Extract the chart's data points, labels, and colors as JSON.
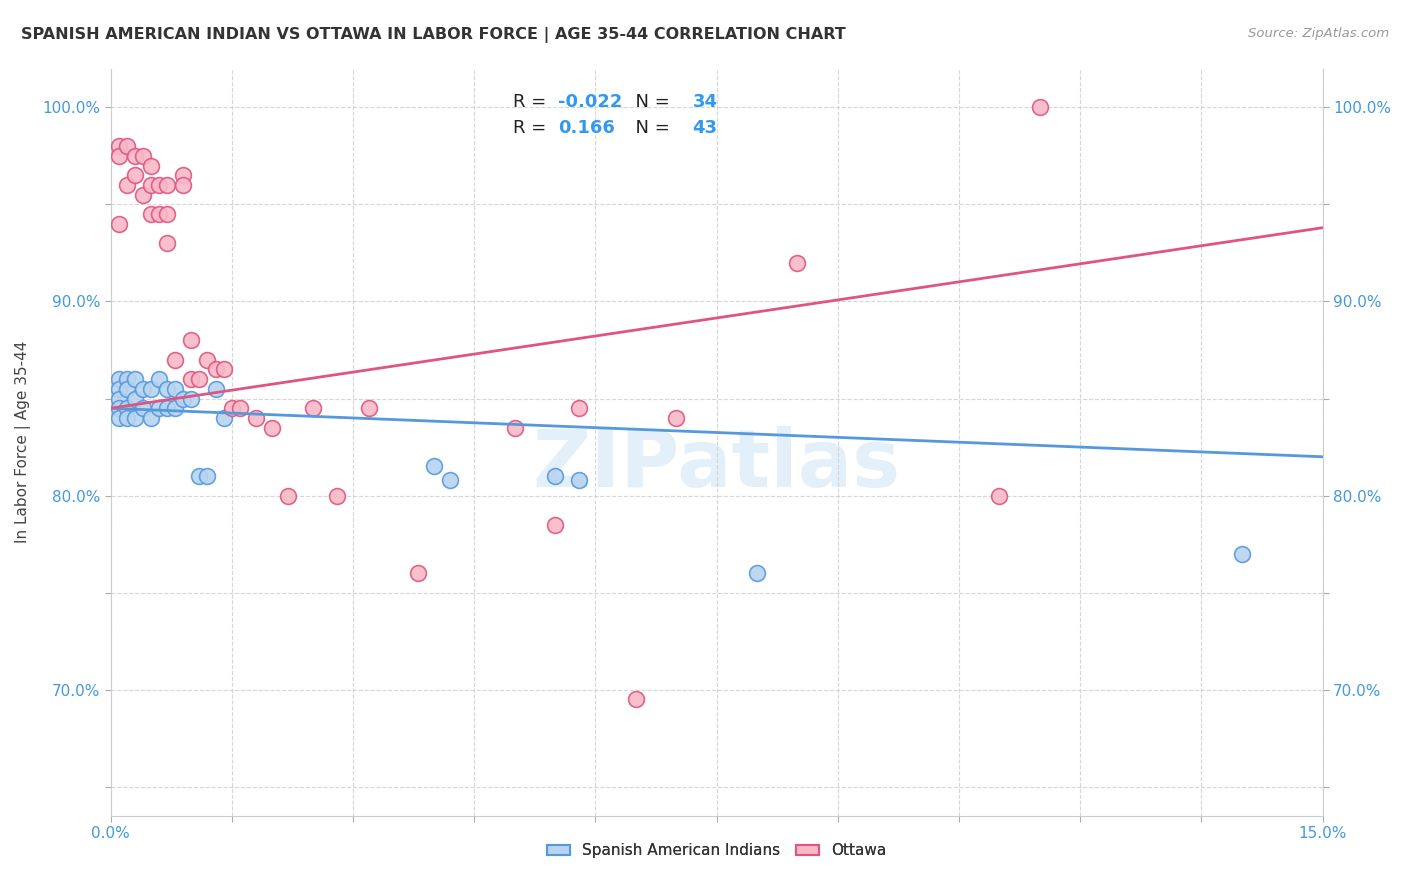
{
  "title": "SPANISH AMERICAN INDIAN VS OTTAWA IN LABOR FORCE | AGE 35-44 CORRELATION CHART",
  "source": "Source: ZipAtlas.com",
  "ylabel": "In Labor Force | Age 35-44",
  "xlim": [
    0.0,
    0.15
  ],
  "ylim": [
    0.635,
    1.02
  ],
  "xticks": [
    0.0,
    0.015,
    0.03,
    0.045,
    0.06,
    0.075,
    0.09,
    0.105,
    0.12,
    0.135,
    0.15
  ],
  "xticklabels": [
    "0.0%",
    "",
    "",
    "",
    "",
    "",
    "",
    "",
    "",
    "",
    "15.0%"
  ],
  "yticks": [
    0.65,
    0.7,
    0.75,
    0.8,
    0.85,
    0.9,
    0.95,
    1.0
  ],
  "yticklabels": [
    "",
    "70.0%",
    "",
    "80.0%",
    "",
    "90.0%",
    "",
    "100.0%"
  ],
  "blue_fill": "#b8d4f0",
  "blue_edge": "#5599dd",
  "pink_fill": "#f8b8c8",
  "pink_edge": "#e05580",
  "blue_line": "#5599dd",
  "pink_line": "#e05580",
  "R_blue": -0.022,
  "N_blue": 34,
  "R_pink": 0.166,
  "N_pink": 43,
  "legend_label_blue": "Spanish American Indians",
  "legend_label_pink": "Ottawa",
  "watermark": "ZIPatlas",
  "blue_scatter_x": [
    0.001,
    0.001,
    0.001,
    0.001,
    0.001,
    0.002,
    0.002,
    0.002,
    0.002,
    0.003,
    0.003,
    0.003,
    0.004,
    0.004,
    0.005,
    0.005,
    0.006,
    0.006,
    0.007,
    0.007,
    0.008,
    0.008,
    0.009,
    0.01,
    0.011,
    0.012,
    0.013,
    0.014,
    0.04,
    0.042,
    0.055,
    0.058,
    0.08,
    0.14
  ],
  "blue_scatter_y": [
    0.86,
    0.855,
    0.85,
    0.845,
    0.84,
    0.86,
    0.855,
    0.845,
    0.84,
    0.86,
    0.85,
    0.84,
    0.855,
    0.845,
    0.855,
    0.84,
    0.86,
    0.845,
    0.855,
    0.845,
    0.855,
    0.845,
    0.85,
    0.85,
    0.81,
    0.81,
    0.855,
    0.84,
    0.815,
    0.808,
    0.81,
    0.808,
    0.76,
    0.77
  ],
  "pink_scatter_x": [
    0.001,
    0.001,
    0.001,
    0.002,
    0.002,
    0.003,
    0.003,
    0.004,
    0.004,
    0.005,
    0.005,
    0.005,
    0.006,
    0.006,
    0.007,
    0.007,
    0.007,
    0.008,
    0.009,
    0.009,
    0.01,
    0.01,
    0.011,
    0.012,
    0.013,
    0.014,
    0.015,
    0.016,
    0.018,
    0.02,
    0.022,
    0.025,
    0.028,
    0.032,
    0.038,
    0.05,
    0.055,
    0.058,
    0.065,
    0.07,
    0.085,
    0.11,
    0.115
  ],
  "pink_scatter_y": [
    0.98,
    0.975,
    0.94,
    0.98,
    0.96,
    0.975,
    0.965,
    0.975,
    0.955,
    0.97,
    0.96,
    0.945,
    0.96,
    0.945,
    0.96,
    0.945,
    0.93,
    0.87,
    0.965,
    0.96,
    0.88,
    0.86,
    0.86,
    0.87,
    0.865,
    0.865,
    0.845,
    0.845,
    0.84,
    0.835,
    0.8,
    0.845,
    0.8,
    0.845,
    0.76,
    0.835,
    0.785,
    0.845,
    0.695,
    0.84,
    0.92,
    0.8,
    1.0
  ],
  "title_fontsize": 11.5,
  "axis_label_fontsize": 11,
  "tick_fontsize": 11,
  "background_color": "#ffffff",
  "grid_color": "#cccccc"
}
